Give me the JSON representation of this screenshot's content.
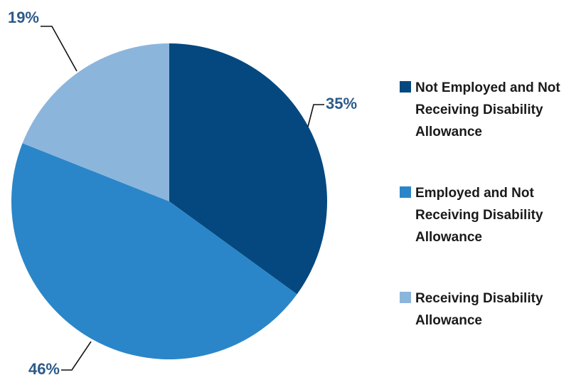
{
  "chart_data": {
    "type": "pie",
    "title": "",
    "categories": [
      "Not Employed and Not Receiving Disability Allowance",
      "Employed and Not Receiving Disability Allowance",
      "Receiving Disability Allowance"
    ],
    "values": [
      35,
      46,
      19
    ],
    "labels": [
      "35%",
      "46%",
      "19%"
    ],
    "colors": [
      "#04487f",
      "#2a86c8",
      "#8cb5dc"
    ],
    "start_angle": "12 o'clock",
    "direction": "clockwise",
    "legend_position": "right"
  },
  "legend": {
    "items": [
      {
        "text": "Not Employed and Not Receiving Disability Allowance",
        "color": "#04487f"
      },
      {
        "text": "Employed and Not Receiving Disability Allowance",
        "color": "#2a86c8"
      },
      {
        "text": "Receiving Disability Allowance",
        "color": "#8cb5dc"
      }
    ]
  }
}
